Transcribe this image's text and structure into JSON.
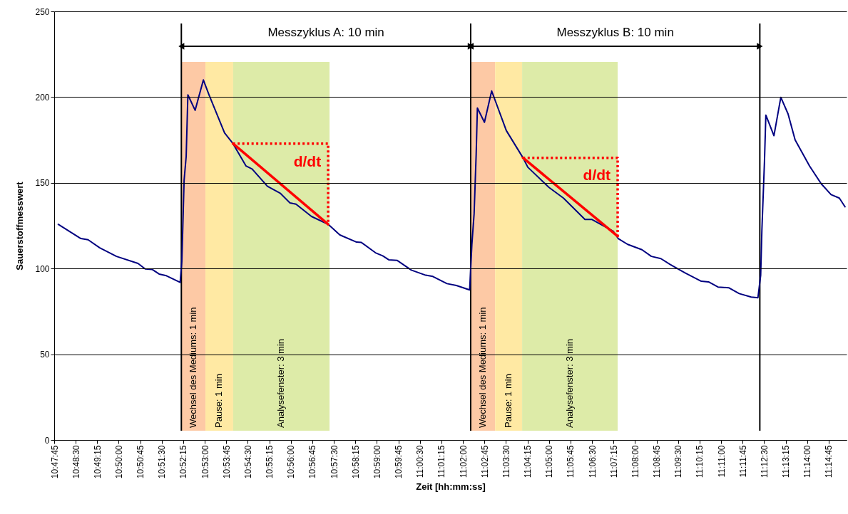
{
  "chart_data": {
    "type": "line",
    "xlabel": "Zeit [hh:mm:ss]",
    "ylabel": "Sauerstoffmesswert",
    "xlim": [
      10.79583,
      11.2562
    ],
    "ylim": [
      0,
      250
    ],
    "yticks": [
      0,
      50,
      100,
      150,
      200,
      250
    ],
    "xticks": [
      {
        "value": 10.79583,
        "label": "10:47:45"
      },
      {
        "value": 10.80833,
        "label": "10:48:30"
      },
      {
        "value": 10.82083,
        "label": "10:49:15"
      },
      {
        "value": 10.83333,
        "label": "10:50:00"
      },
      {
        "value": 10.84583,
        "label": "10:50:45"
      },
      {
        "value": 10.85833,
        "label": "10:51:30"
      },
      {
        "value": 10.87083,
        "label": "10:52:15"
      },
      {
        "value": 10.88333,
        "label": "10:53:00"
      },
      {
        "value": 10.89583,
        "label": "10:53:45"
      },
      {
        "value": 10.90833,
        "label": "10:54:30"
      },
      {
        "value": 10.92083,
        "label": "10:55:15"
      },
      {
        "value": 10.93333,
        "label": "10:56:00"
      },
      {
        "value": 10.94583,
        "label": "10:56:45"
      },
      {
        "value": 10.95833,
        "label": "10:57:30"
      },
      {
        "value": 10.97083,
        "label": "10:58:15"
      },
      {
        "value": 10.98333,
        "label": "10:59:00"
      },
      {
        "value": 10.99583,
        "label": "10:59:45"
      },
      {
        "value": 11.00833,
        "label": "11:00:30"
      },
      {
        "value": 11.02083,
        "label": "11:01:15"
      },
      {
        "value": 11.03333,
        "label": "11:02:00"
      },
      {
        "value": 11.04583,
        "label": "11:02:45"
      },
      {
        "value": 11.05833,
        "label": "11:03:30"
      },
      {
        "value": 11.07083,
        "label": "11:04:15"
      },
      {
        "value": 11.08333,
        "label": "11:05:00"
      },
      {
        "value": 11.09583,
        "label": "11:05:45"
      },
      {
        "value": 11.10833,
        "label": "11:06:30"
      },
      {
        "value": 11.12083,
        "label": "11:07:15"
      },
      {
        "value": 11.13333,
        "label": "11:08:00"
      },
      {
        "value": 11.14583,
        "label": "11:08:45"
      },
      {
        "value": 11.15833,
        "label": "11:09:30"
      },
      {
        "value": 11.17083,
        "label": "11:10:15"
      },
      {
        "value": 11.18333,
        "label": "11:11:00"
      },
      {
        "value": 11.19583,
        "label": "11:11:45"
      },
      {
        "value": 11.20833,
        "label": "11:12:30"
      },
      {
        "value": 11.22083,
        "label": "11:13:15"
      },
      {
        "value": 11.23333,
        "label": "11:14:00"
      },
      {
        "value": 11.24583,
        "label": "11:14:45"
      }
    ],
    "grid": "y",
    "x": [
      10.7982,
      10.8113,
      10.8155,
      10.8223,
      10.832,
      10.8445,
      10.8487,
      10.8527,
      10.8568,
      10.861,
      10.869,
      10.87,
      10.8713,
      10.8725,
      10.8735,
      10.8777,
      10.8825,
      10.8858,
      10.8948,
      10.8997,
      10.9073,
      10.9108,
      10.9197,
      10.9273,
      10.9328,
      10.9363,
      10.9453,
      10.955,
      10.9618,
      10.9715,
      10.9743,
      10.9825,
      10.9867,
      10.9902,
      10.995,
      11.0033,
      11.0117,
      11.0158,
      11.024,
      11.0295,
      11.0372,
      11.0385,
      11.0398,
      11.041,
      11.0417,
      11.0458,
      11.05,
      11.0585,
      11.0682,
      11.071,
      11.0833,
      11.0917,
      11.1042,
      11.1083,
      11.1207,
      11.1235,
      11.129,
      11.1373,
      11.1428,
      11.1483,
      11.1538,
      11.1622,
      11.1718,
      11.176,
      11.1815,
      11.1877,
      11.1938,
      11.2008,
      11.2047,
      11.2063,
      11.207,
      11.2085,
      11.2093,
      11.214,
      11.218,
      11.2222,
      11.2263,
      11.2347,
      11.2415,
      11.2472,
      11.252,
      11.2553
    ],
    "series": [
      {
        "color": "#000080",
        "values": [
          125.8,
          117.5,
          116.8,
          112.1,
          107.1,
          103,
          99.8,
          99.5,
          96.8,
          95.8,
          91.9,
          104.4,
          151.4,
          165.3,
          201.3,
          192.3,
          210,
          201.3,
          179.1,
          172.9,
          159.8,
          158.1,
          148,
          143.8,
          138.3,
          137.6,
          130.4,
          125.8,
          119.6,
          115.4,
          115.2,
          109.2,
          107.4,
          105.1,
          104.8,
          99.1,
          96.1,
          95.4,
          91.2,
          90.1,
          87.5,
          114,
          132,
          166.7,
          193.6,
          185.3,
          203.6,
          180.5,
          164.6,
          159.1,
          147.3,
          141.1,
          128.6,
          128.6,
          121.7,
          117.5,
          114.1,
          111,
          107.1,
          105.8,
          102.3,
          97.5,
          92.6,
          92.2,
          89.2,
          88.8,
          85.4,
          83.4,
          83,
          96.1,
          122.4,
          162.5,
          189.5,
          177.5,
          199.9,
          190.2,
          175,
          159.8,
          149.4,
          143.1,
          141.1,
          136
        ]
      },
      {
        "type": "line",
        "color": "#ff0000",
        "line_style": "solid",
        "x": [
          10.8997,
          10.955
        ],
        "values": [
          172.9,
          125.8
        ]
      },
      {
        "type": "line",
        "color": "#ff0000",
        "line_style": "dotted",
        "x": [
          10.8997,
          10.955,
          10.955
        ],
        "values": [
          172.9,
          172.9,
          125.8
        ]
      },
      {
        "type": "line",
        "color": "#ff0000",
        "line_style": "solid",
        "x": [
          11.0682,
          11.1232
        ],
        "values": [
          164.6,
          118.8
        ]
      },
      {
        "type": "line",
        "color": "#ff0000",
        "line_style": "dotted",
        "x": [
          11.0682,
          11.1232,
          11.1232
        ],
        "values": [
          164.6,
          164.6,
          118.8
        ]
      }
    ],
    "ref_lines": [
      {
        "axis": "x",
        "value": 10.8697
      },
      {
        "axis": "x",
        "value": 11.0378
      },
      {
        "axis": "x",
        "value": 11.2058
      }
    ],
    "bands": [
      {
        "axis": "x",
        "from": 10.8697,
        "to": 10.8837,
        "label": "Wechsel des Mediums: 1 min",
        "color": "#fdc9a5"
      },
      {
        "axis": "x",
        "from": 10.8837,
        "to": 10.8998,
        "label": "Pause: 1 min",
        "color": "#ffe9a3"
      },
      {
        "axis": "x",
        "from": 10.8998,
        "to": 10.9558,
        "label": "Analysefenster: 3 min",
        "color": "#ddeba8"
      },
      {
        "axis": "x",
        "from": 11.0378,
        "to": 11.052,
        "label": "Wechsel des Mediums: 1 min",
        "color": "#fdc9a5"
      },
      {
        "axis": "x",
        "from": 11.052,
        "to": 11.0677,
        "label": "Pause: 1 min",
        "color": "#ffe9a3"
      },
      {
        "axis": "x",
        "from": 11.0677,
        "to": 11.1232,
        "label": "Analysefenster: 3 min",
        "color": "#ddeba8"
      }
    ],
    "annotations": [
      "Messzyklus A: 10 min",
      "Messzyklus B: 10 min",
      "d/dt",
      "d/dt"
    ]
  }
}
